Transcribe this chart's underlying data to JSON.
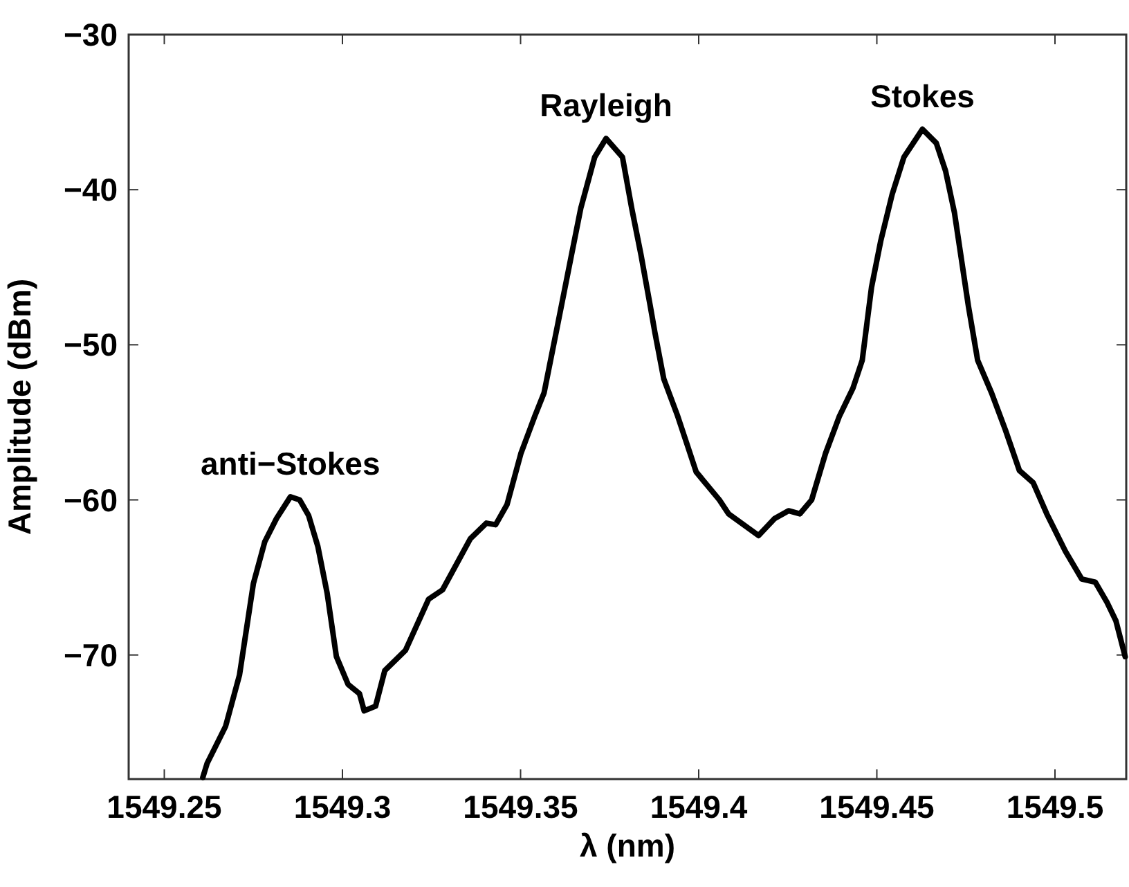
{
  "chart_data": {
    "type": "line",
    "xlabel": "λ (nm)",
    "ylabel": "Amplitude (dBm)",
    "xlim": [
      1549.24,
      1549.52
    ],
    "xticks": [
      1549.25,
      1549.3,
      1549.35,
      1549.4,
      1549.45,
      1549.5
    ],
    "ylim": [
      -78,
      -30
    ],
    "yticks": [
      -70,
      -60,
      -50,
      -40,
      -30
    ],
    "grid": false,
    "marker": "none",
    "line_style": "solid",
    "annotations": [
      {
        "text": "anti−Stokes",
        "x": 1549.2854,
        "y": -59.8
      },
      {
        "text": "Rayleigh",
        "x": 1549.374,
        "y": -36.7
      },
      {
        "text": "Stokes",
        "x": 1549.4628,
        "y": -36.1
      }
    ],
    "series": [
      {
        "color": "#000000",
        "x": [
          1549.2608,
          1549.262,
          1549.2659,
          1549.2672,
          1549.2711,
          1549.275,
          1549.2782,
          1549.2815,
          1549.2854,
          1549.288,
          1549.2905,
          1549.2931,
          1549.2957,
          1549.2983,
          1549.3016,
          1549.3048,
          1549.3061,
          1549.3093,
          1549.3119,
          1549.3177,
          1549.3242,
          1549.3281,
          1549.3359,
          1549.3404,
          1549.343,
          1549.3462,
          1549.3501,
          1549.354,
          1549.3566,
          1549.3605,
          1549.3643,
          1549.3669,
          1549.3708,
          1549.374,
          1549.3786,
          1549.3812,
          1549.3838,
          1549.3864,
          1549.3877,
          1549.3902,
          1549.3941,
          1549.3967,
          1549.3993,
          1549.4058,
          1549.4084,
          1549.4168,
          1549.4213,
          1549.4252,
          1549.4284,
          1549.4317,
          1549.4356,
          1549.4395,
          1549.4433,
          1549.4459,
          1549.4485,
          1549.4511,
          1549.4543,
          1549.4576,
          1549.4628,
          1549.4667,
          1549.4693,
          1549.4718,
          1549.4757,
          1549.4783,
          1549.4822,
          1549.4861,
          1549.49,
          1549.4939,
          1549.4977,
          1549.5029,
          1549.5075,
          1549.5113,
          1549.5146,
          1549.5171,
          1549.5197
        ],
        "values": [
          -77.9,
          -77.0,
          -75.2,
          -74.6,
          -71.3,
          -65.4,
          -62.7,
          -61.2,
          -59.8,
          -60.0,
          -61.0,
          -63.0,
          -66.0,
          -70.1,
          -71.9,
          -72.5,
          -73.6,
          -73.3,
          -71.0,
          -69.7,
          -66.4,
          -65.8,
          -62.5,
          -61.5,
          -61.6,
          -60.3,
          -57.0,
          -54.6,
          -53.1,
          -48.6,
          -44.2,
          -41.2,
          -37.9,
          -36.7,
          -37.9,
          -41.2,
          -44.2,
          -47.5,
          -49.2,
          -52.2,
          -54.6,
          -56.4,
          -58.2,
          -60.0,
          -60.9,
          -62.3,
          -61.2,
          -60.7,
          -60.9,
          -60.0,
          -57.0,
          -54.6,
          -52.8,
          -51.0,
          -46.3,
          -43.3,
          -40.3,
          -37.9,
          -36.1,
          -37.0,
          -38.8,
          -41.5,
          -47.5,
          -51.0,
          -53.1,
          -55.5,
          -58.1,
          -58.9,
          -60.9,
          -63.3,
          -65.1,
          -65.3,
          -66.6,
          -67.8,
          -70.1
        ]
      }
    ]
  }
}
